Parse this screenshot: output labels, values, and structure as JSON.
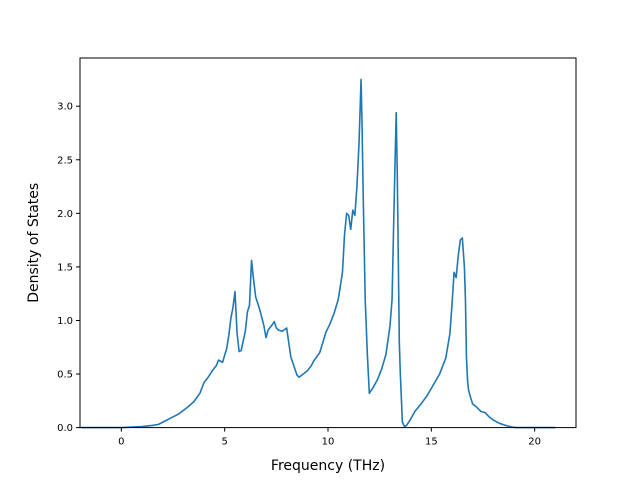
{
  "chart_data": {
    "type": "line",
    "title": "",
    "xlabel": "Frequency (THz)",
    "ylabel": "Density of States",
    "xlim": [
      -2.0,
      22.0
    ],
    "ylim": [
      0.0,
      3.45
    ],
    "xticks": [
      0,
      5,
      10,
      15,
      20
    ],
    "yticks": [
      0.0,
      0.5,
      1.0,
      1.5,
      2.0,
      2.5,
      3.0
    ],
    "xtick_labels": [
      "0",
      "5",
      "10",
      "15",
      "20"
    ],
    "ytick_labels": [
      "0.0",
      "0.5",
      "1.0",
      "1.5",
      "2.0",
      "2.5",
      "3.0"
    ],
    "grid": false,
    "legend": false,
    "series": [
      {
        "color": "#1f77b4",
        "x": [
          -1.95,
          0.0,
          0.5,
          1.0,
          1.5,
          1.8,
          2.0,
          2.4,
          2.8,
          3.2,
          3.5,
          3.8,
          4.0,
          4.2,
          4.4,
          4.6,
          4.7,
          4.9,
          5.1,
          5.2,
          5.3,
          5.4,
          5.5,
          5.6,
          5.7,
          5.8,
          6.0,
          6.1,
          6.2,
          6.3,
          6.4,
          6.5,
          6.7,
          6.9,
          7.0,
          7.1,
          7.3,
          7.4,
          7.5,
          7.6,
          7.8,
          8.0,
          8.2,
          8.5,
          8.6,
          8.8,
          9.0,
          9.2,
          9.3,
          9.6,
          9.9,
          10.1,
          10.3,
          10.5,
          10.7,
          10.8,
          10.9,
          11.0,
          11.1,
          11.2,
          11.3,
          11.4,
          11.5,
          11.6,
          11.65,
          11.7,
          11.75,
          11.8,
          11.9,
          12.0,
          12.2,
          12.4,
          12.6,
          12.8,
          13.0,
          13.1,
          13.2,
          13.3,
          13.35,
          13.4,
          13.45,
          13.5,
          13.6,
          13.7,
          13.8,
          14.0,
          14.2,
          14.5,
          14.8,
          15.1,
          15.4,
          15.7,
          15.9,
          16.0,
          16.1,
          16.2,
          16.3,
          16.4,
          16.5,
          16.6,
          16.65,
          16.7,
          16.75,
          16.8,
          16.9,
          17.0,
          17.2,
          17.4,
          17.6,
          17.8,
          18.0,
          18.3,
          18.6,
          18.9,
          19.1,
          19.3,
          20.0,
          21.0
        ],
        "y": [
          0.0,
          0.0,
          0.005,
          0.01,
          0.02,
          0.03,
          0.05,
          0.09,
          0.13,
          0.19,
          0.24,
          0.32,
          0.42,
          0.47,
          0.53,
          0.58,
          0.63,
          0.61,
          0.74,
          0.86,
          1.02,
          1.12,
          1.27,
          0.88,
          0.71,
          0.72,
          0.9,
          1.08,
          1.14,
          1.56,
          1.38,
          1.22,
          1.1,
          0.95,
          0.84,
          0.91,
          0.96,
          0.99,
          0.93,
          0.91,
          0.9,
          0.93,
          0.66,
          0.49,
          0.47,
          0.5,
          0.53,
          0.58,
          0.62,
          0.7,
          0.89,
          0.97,
          1.07,
          1.2,
          1.45,
          1.8,
          2.0,
          1.98,
          1.85,
          2.03,
          1.98,
          2.25,
          2.65,
          3.25,
          2.8,
          2.2,
          1.7,
          1.2,
          0.7,
          0.32,
          0.38,
          0.45,
          0.55,
          0.68,
          0.95,
          1.2,
          2.1,
          2.94,
          2.4,
          1.6,
          0.8,
          0.5,
          0.05,
          0.01,
          0.02,
          0.08,
          0.15,
          0.22,
          0.3,
          0.4,
          0.5,
          0.65,
          0.88,
          1.15,
          1.45,
          1.4,
          1.6,
          1.75,
          1.77,
          1.5,
          1.2,
          0.65,
          0.45,
          0.35,
          0.28,
          0.22,
          0.19,
          0.15,
          0.14,
          0.1,
          0.07,
          0.04,
          0.02,
          0.005,
          0.0,
          0.0,
          0.0,
          0.0
        ]
      }
    ]
  }
}
